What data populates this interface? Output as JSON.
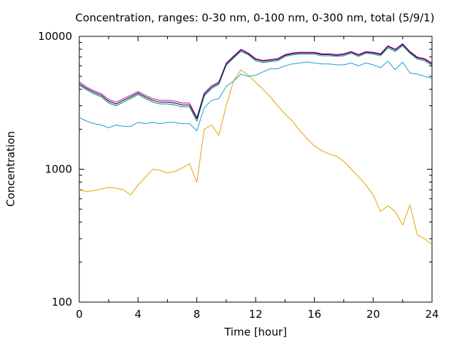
{
  "chart_data": {
    "type": "line",
    "title": "Concentration, ranges: 0-30 nm, 0-100 nm, 0-300 nm, total (5/9/1)",
    "xlabel": "Time [hour]",
    "ylabel": "Concentration",
    "xlim": [
      0,
      24
    ],
    "ylim": [
      100,
      10000
    ],
    "yscale": "log",
    "grid": false,
    "x_ticks": [
      0,
      4,
      8,
      12,
      16,
      20,
      24
    ],
    "x_tick_labels": [
      "0",
      "4",
      "8",
      "12",
      "16",
      "20",
      "24"
    ],
    "y_ticks": [
      100,
      1000,
      10000
    ],
    "y_tick_labels": [
      "100",
      "1000",
      "10000"
    ],
    "x": [
      0,
      0.5,
      1,
      1.5,
      2,
      2.5,
      3,
      3.5,
      4,
      4.5,
      5,
      5.5,
      6,
      6.5,
      7,
      7.5,
      8,
      8.5,
      9,
      9.5,
      10,
      10.5,
      11,
      11.5,
      12,
      12.5,
      13,
      13.5,
      14,
      14.5,
      15,
      15.5,
      16,
      16.5,
      17,
      17.5,
      18,
      18.5,
      19,
      19.5,
      20,
      20.5,
      21,
      21.5,
      22,
      22.5,
      23,
      23.5,
      24
    ],
    "series": [
      {
        "color": "#e6a000",
        "values": [
          700,
          680,
          690,
          710,
          730,
          720,
          700,
          640,
          760,
          870,
          1000,
          980,
          940,
          960,
          1020,
          1100,
          800,
          2000,
          2150,
          1800,
          3000,
          4600,
          5600,
          5100,
          4500,
          4000,
          3500,
          3000,
          2600,
          2300,
          1950,
          1700,
          1500,
          1380,
          1300,
          1250,
          1150,
          1000,
          880,
          760,
          640,
          480,
          530,
          480,
          380,
          540,
          320,
          300,
          270
        ]
      },
      {
        "color": "#1a9fd6",
        "values": [
          2450,
          2300,
          2200,
          2150,
          2050,
          2150,
          2100,
          2100,
          2250,
          2200,
          2250,
          2200,
          2250,
          2250,
          2200,
          2200,
          1950,
          2900,
          3300,
          3400,
          4200,
          4600,
          5200,
          5000,
          5100,
          5400,
          5700,
          5700,
          6000,
          6200,
          6300,
          6400,
          6300,
          6200,
          6200,
          6100,
          6100,
          6300,
          6000,
          6300,
          6100,
          5800,
          6500,
          5600,
          6400,
          5300,
          5200,
          5000,
          4800
        ]
      },
      {
        "color": "#d000d0",
        "values": [
          4550,
          4150,
          3900,
          3700,
          3350,
          3200,
          3400,
          3600,
          3850,
          3600,
          3400,
          3300,
          3300,
          3250,
          3150,
          3150,
          2450,
          3750,
          4250,
          4550,
          6300,
          7100,
          8000,
          7500,
          6800,
          6600,
          6700,
          6800,
          7300,
          7500,
          7600,
          7600,
          7600,
          7400,
          7400,
          7300,
          7400,
          7700,
          7300,
          7700,
          7600,
          7400,
          8500,
          8000,
          8800,
          7700,
          7000,
          6800,
          6300
        ]
      },
      {
        "color": "#000000",
        "values": [
          4400,
          4050,
          3800,
          3600,
          3250,
          3100,
          3300,
          3500,
          3750,
          3500,
          3300,
          3200,
          3200,
          3150,
          3050,
          3050,
          2400,
          3650,
          4150,
          4450,
          6200,
          7000,
          7900,
          7400,
          6700,
          6500,
          6600,
          6700,
          7200,
          7400,
          7500,
          7500,
          7500,
          7300,
          7300,
          7200,
          7300,
          7600,
          7200,
          7600,
          7500,
          7300,
          8400,
          7900,
          8700,
          7600,
          6900,
          6700,
          6200
        ]
      },
      {
        "color": "#008080",
        "values": [
          4300,
          3950,
          3700,
          3500,
          3150,
          3000,
          3200,
          3400,
          3650,
          3400,
          3200,
          3100,
          3100,
          3050,
          2950,
          2950,
          2300,
          3550,
          4050,
          4350,
          6050,
          6850,
          7700,
          7250,
          6550,
          6350,
          6450,
          6550,
          7050,
          7250,
          7350,
          7350,
          7350,
          7150,
          7150,
          7050,
          7150,
          7450,
          7050,
          7450,
          7350,
          7150,
          8200,
          7700,
          8500,
          7450,
          6750,
          6550,
          6050
        ]
      }
    ]
  }
}
